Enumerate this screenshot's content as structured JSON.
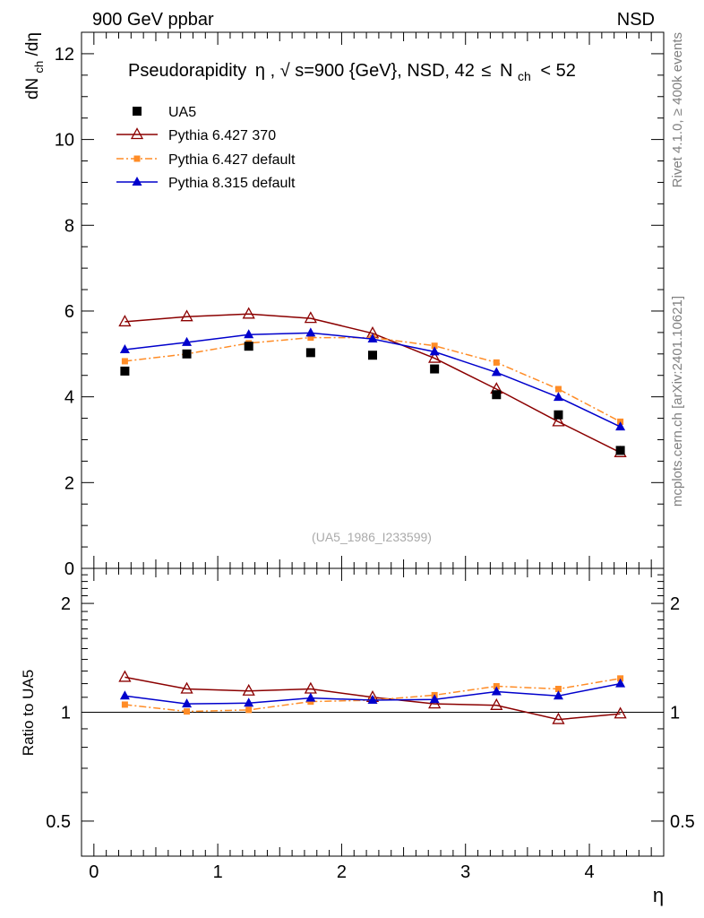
{
  "header": {
    "left": "900 GeV ppbar",
    "right": "NSD"
  },
  "side_labels": {
    "rivet": "Rivet 4.1.0, ≥ 400k events",
    "mcplots": "mcplots.cern.ch [arXiv:2401.10621]"
  },
  "chart_data": [
    {
      "type": "scatter",
      "panel": "main",
      "title": {
        "prefix": "Pseudorapidity",
        "eta": "η",
        "sqrt": "√",
        "s_text": "s=900 {GeV}, NSD, 42",
        "le": "≤",
        "n": "N",
        "n_sub": "ch",
        "tail": "< 52"
      },
      "ylabel": {
        "d1": "dN",
        "sub": "ch",
        "d2": "/dη"
      },
      "xlabel": "η",
      "xlim": [
        -0.1,
        4.6
      ],
      "ylim": [
        0,
        12.5
      ],
      "yticks": [
        "0",
        "2",
        "4",
        "6",
        "8",
        "10",
        "12"
      ],
      "watermark": "(UA5_1986_I233599)",
      "x": [
        0.25,
        0.75,
        1.25,
        1.75,
        2.25,
        2.75,
        3.25,
        3.75,
        4.25
      ],
      "series": [
        {
          "name": "UA5",
          "color": "#000000",
          "marker": "square",
          "line": "none",
          "values": [
            4.6,
            5.0,
            5.18,
            5.03,
            4.97,
            4.65,
            4.05,
            3.58,
            2.75
          ]
        },
        {
          "name": "Pythia 6.427 370",
          "color": "#8b0000",
          "marker": "open-triangle",
          "line": "solid",
          "values": [
            5.75,
            5.87,
            5.93,
            5.83,
            5.48,
            4.9,
            4.18,
            3.42,
            2.7
          ]
        },
        {
          "name": "Pythia 6.427 default",
          "color": "#ff8c26",
          "marker": "small-square",
          "line": "dashdot",
          "values": [
            4.83,
            5.0,
            5.25,
            5.38,
            5.38,
            5.19,
            4.8,
            4.18,
            3.42
          ]
        },
        {
          "name": "Pythia 8.315 default",
          "color": "#0000cc",
          "marker": "triangle",
          "line": "solid",
          "values": [
            5.1,
            5.27,
            5.45,
            5.49,
            5.35,
            5.05,
            4.57,
            3.99,
            3.3
          ]
        }
      ]
    },
    {
      "type": "line",
      "panel": "ratio",
      "ylabel": "Ratio to UA5",
      "xlabel": "η",
      "xlim": [
        -0.1,
        4.6
      ],
      "ylim": [
        0.4,
        2.5
      ],
      "yscale": "log",
      "yticks": [
        "0.5",
        "1",
        "2"
      ],
      "xticks": [
        "0",
        "1",
        "2",
        "3",
        "4"
      ],
      "reference": 1.0,
      "x": [
        0.25,
        0.75,
        1.25,
        1.75,
        2.25,
        2.75,
        3.25,
        3.75,
        4.25
      ],
      "series": [
        {
          "name": "Pythia 6.427 370",
          "color": "#8b0000",
          "marker": "open-triangle",
          "line": "solid",
          "values": [
            1.25,
            1.16,
            1.145,
            1.16,
            1.1,
            1.055,
            1.045,
            0.955,
            0.99
          ]
        },
        {
          "name": "Pythia 6.427 default",
          "color": "#ff8c26",
          "marker": "small-square",
          "line": "dashdot",
          "values": [
            1.05,
            1.005,
            1.015,
            1.07,
            1.08,
            1.115,
            1.18,
            1.16,
            1.24
          ]
        },
        {
          "name": "Pythia 8.315 default",
          "color": "#0000cc",
          "marker": "triangle",
          "line": "solid",
          "values": [
            1.11,
            1.055,
            1.06,
            1.095,
            1.08,
            1.085,
            1.14,
            1.11,
            1.2
          ]
        }
      ]
    }
  ]
}
